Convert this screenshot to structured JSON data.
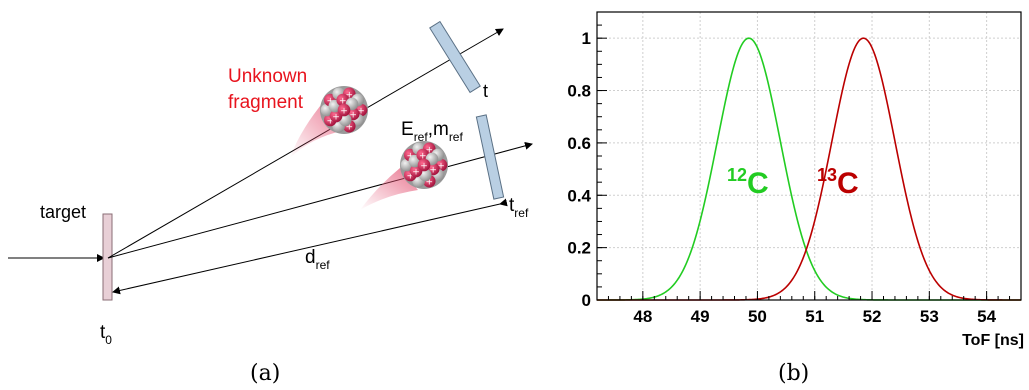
{
  "diagram": {
    "unknown_fragment_line1": "Unknown",
    "unknown_fragment_line2": "fragment",
    "target_label": "target",
    "t0_main": "t",
    "t0_sub": "0",
    "t_label": "t",
    "tref_main": "t",
    "tref_sub": "ref",
    "eref_main": "E",
    "eref_sub": "ref",
    "mref_main": ",m",
    "mref_sub": "ref",
    "dref_main": "d",
    "dref_sub": "ref",
    "colors": {
      "red_text": "#e8141e",
      "detector": "#b9cfe3",
      "target": "#e8cfd6"
    }
  },
  "chart_data": {
    "type": "line",
    "xlabel": "ToF [ns]",
    "ylabel": "",
    "xlim": [
      47.2,
      54.6
    ],
    "ylim": [
      0,
      1.1
    ],
    "x_ticks": [
      "48",
      "49",
      "50",
      "51",
      "52",
      "53",
      "54"
    ],
    "y_ticks": [
      "0",
      "0.2",
      "0.4",
      "0.6",
      "0.8",
      "1"
    ],
    "grid": true,
    "series": [
      {
        "name": "12C",
        "label_sup": "12",
        "label_main": "C",
        "color": "#22cc22",
        "mean": 49.85,
        "sigma": 0.55,
        "peak": 1.0
      },
      {
        "name": "13C",
        "label_sup": "13",
        "label_main": "C",
        "color": "#bb0000",
        "mean": 51.85,
        "sigma": 0.55,
        "peak": 1.0
      }
    ]
  },
  "captions": {
    "a": "(a)",
    "b": "(b)"
  }
}
